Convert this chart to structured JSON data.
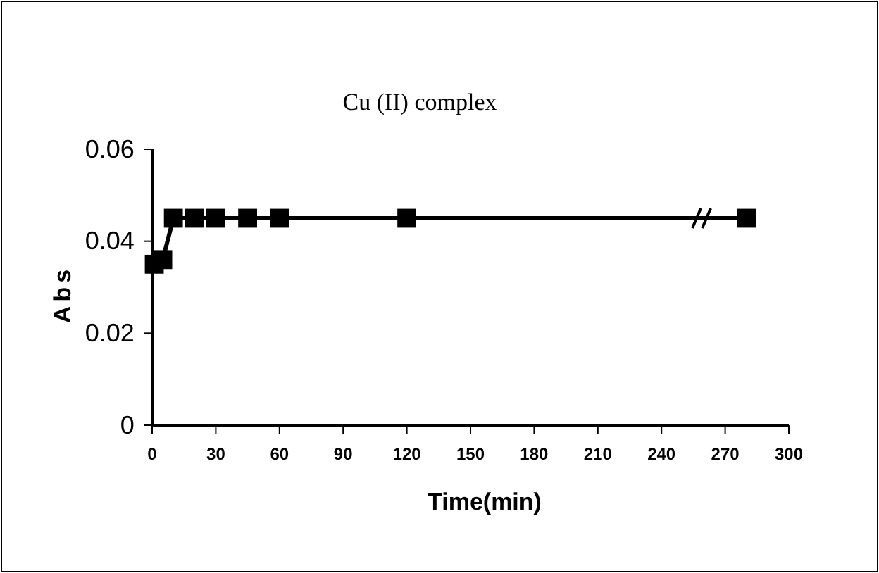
{
  "chart_data": {
    "type": "line",
    "title": "Cu (II) complex",
    "xlabel": "Time(min)",
    "ylabel": "Abs",
    "x": [
      1,
      5,
      10,
      20,
      30,
      45,
      60,
      120,
      280
    ],
    "series": [
      {
        "color": "#000000",
        "values": [
          0.035,
          0.036,
          0.045,
          0.045,
          0.045,
          0.045,
          0.045,
          0.045,
          0.045
        ]
      }
    ],
    "xlim": [
      0,
      300
    ],
    "xticks": [
      0,
      30,
      60,
      90,
      120,
      150,
      180,
      210,
      240,
      270,
      300
    ],
    "ylim": [
      0,
      0.06
    ],
    "yticks": [
      0,
      0.02,
      0.04,
      0.06
    ],
    "marker": "square",
    "line_style": "solid",
    "grid": false
  }
}
